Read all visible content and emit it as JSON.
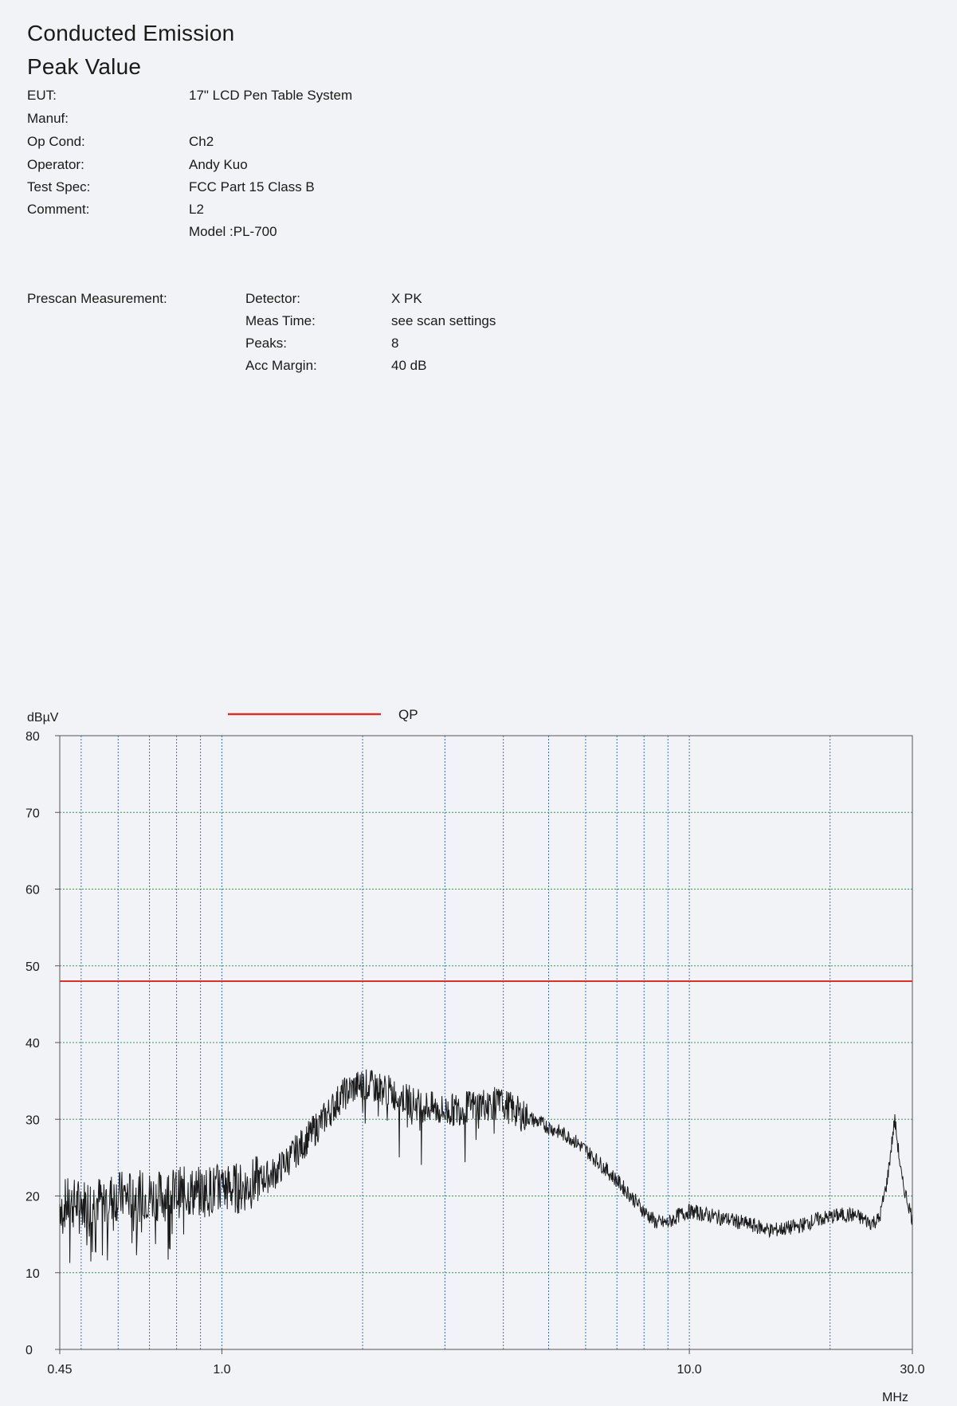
{
  "header": {
    "title": "Conducted Emission",
    "subtitle": "Peak Value"
  },
  "info": [
    {
      "label": "EUT:",
      "value": "17\"  LCD Pen Table System"
    },
    {
      "label": "Manuf:",
      "value": ""
    },
    {
      "label": "Op Cond:",
      "value": "Ch2"
    },
    {
      "label": "Operator:",
      "value": "Andy Kuo"
    },
    {
      "label": "Test Spec:",
      "value": "FCC Part 15 Class B"
    },
    {
      "label": "Comment:",
      "value": "L2"
    },
    {
      "label": "",
      "value": "Model :PL-700"
    }
  ],
  "prescan": {
    "heading": "Prescan Measurement:",
    "rows": [
      {
        "label": "Detector:",
        "value": "X PK"
      },
      {
        "label": "Meas Time:",
        "value": "see scan settings"
      },
      {
        "label": "Peaks:",
        "value": "8"
      },
      {
        "label": "Acc Margin:",
        "value": "40 dB"
      }
    ]
  },
  "chart_data": {
    "type": "line",
    "title": "",
    "ylabel": "dBµV",
    "xlabel": "MHz",
    "x_scale": "log",
    "xlim": [
      0.45,
      30.0
    ],
    "ylim": [
      0,
      80
    ],
    "x_tick_labels": [
      "0.45",
      "1.0",
      "10.0",
      "30.0"
    ],
    "x_ticks": [
      0.45,
      1.0,
      10.0,
      30.0
    ],
    "y_ticks": [
      0,
      10,
      20,
      30,
      40,
      50,
      60,
      70,
      80
    ],
    "y_tick_labels": [
      "0",
      "10",
      "20",
      "30",
      "40",
      "50",
      "60",
      "70",
      "80"
    ],
    "vertical_gridlines_mhz": [
      0.5,
      0.6,
      0.7,
      0.8,
      0.9,
      1.0,
      2.0,
      3.0,
      4.0,
      5.0,
      6.0,
      7.0,
      8.0,
      9.0,
      10.0,
      20.0
    ],
    "legend": {
      "entries": [
        {
          "name": "QP",
          "color": "#d9302c"
        }
      ],
      "placement": "top-center"
    },
    "limit_line": {
      "name": "QP",
      "value": 48,
      "color": "#d9302c"
    },
    "series": [
      {
        "name": "",
        "color": "#1a1a1a",
        "x": [
          0.45,
          0.5,
          0.55,
          0.6,
          0.65,
          0.7,
          0.75,
          0.8,
          0.9,
          1.0,
          1.1,
          1.2,
          1.3,
          1.4,
          1.5,
          1.6,
          1.7,
          1.8,
          1.9,
          2.0,
          2.2,
          2.4,
          2.6,
          2.8,
          3.0,
          3.3,
          3.6,
          4.0,
          4.4,
          4.8,
          5.2,
          5.6,
          6.0,
          6.5,
          7.0,
          7.5,
          8.0,
          8.5,
          9.0,
          9.5,
          10.0,
          11.0,
          12.0,
          13.0,
          14.0,
          15.0,
          17.0,
          19.0,
          21.0,
          22.5,
          23.5,
          24.5,
          25.5,
          26.5,
          27.5,
          28.5,
          30.0
        ],
        "y": [
          19,
          19,
          19.5,
          20,
          20,
          20,
          20,
          20.5,
          20.5,
          21,
          21,
          22,
          23,
          25,
          27,
          29,
          31,
          33,
          34,
          34.5,
          34,
          33,
          32,
          31.5,
          31,
          31.5,
          32,
          32,
          30.5,
          29.5,
          28.5,
          27.5,
          26,
          24,
          22,
          20,
          18,
          16.5,
          16.5,
          17.5,
          18,
          17.5,
          17,
          16.5,
          16,
          15.5,
          16,
          17,
          17.5,
          17.5,
          17,
          16.5,
          17,
          22,
          30,
          22,
          17
        ]
      }
    ]
  }
}
